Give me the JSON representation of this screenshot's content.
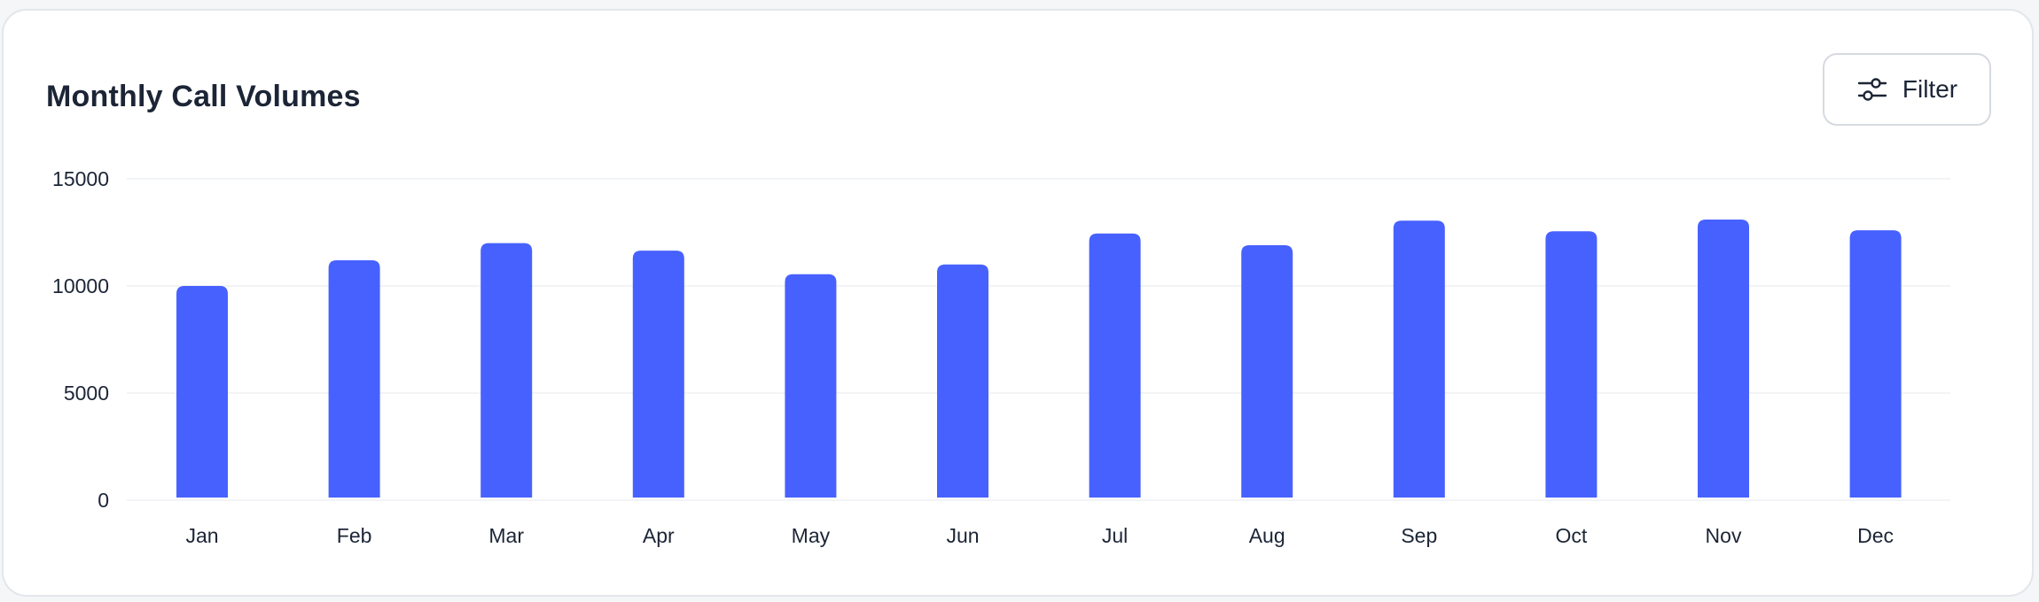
{
  "card": {
    "title": "Monthly Call Volumes",
    "filter_label": "Filter",
    "filter_icon": "sliders-icon"
  },
  "colors": {
    "bar": "#4761ff",
    "grid": "#eef0f3",
    "text": "#1c2536"
  },
  "chart_data": {
    "type": "bar",
    "title": "Monthly Call Volumes",
    "xlabel": "",
    "ylabel": "",
    "categories": [
      "Jan",
      "Feb",
      "Mar",
      "Apr",
      "May",
      "Jun",
      "Jul",
      "Aug",
      "Sep",
      "Oct",
      "Nov",
      "Dec"
    ],
    "values": [
      10000,
      11200,
      12000,
      11650,
      10550,
      11000,
      12450,
      11900,
      13050,
      12550,
      13100,
      12600
    ],
    "ylim": [
      0,
      15000
    ],
    "yticks": [
      0,
      5000,
      10000,
      15000
    ],
    "ytick_labels": [
      "0",
      "5000",
      "10000",
      "15000"
    ],
    "grid": true,
    "legend": "none"
  }
}
